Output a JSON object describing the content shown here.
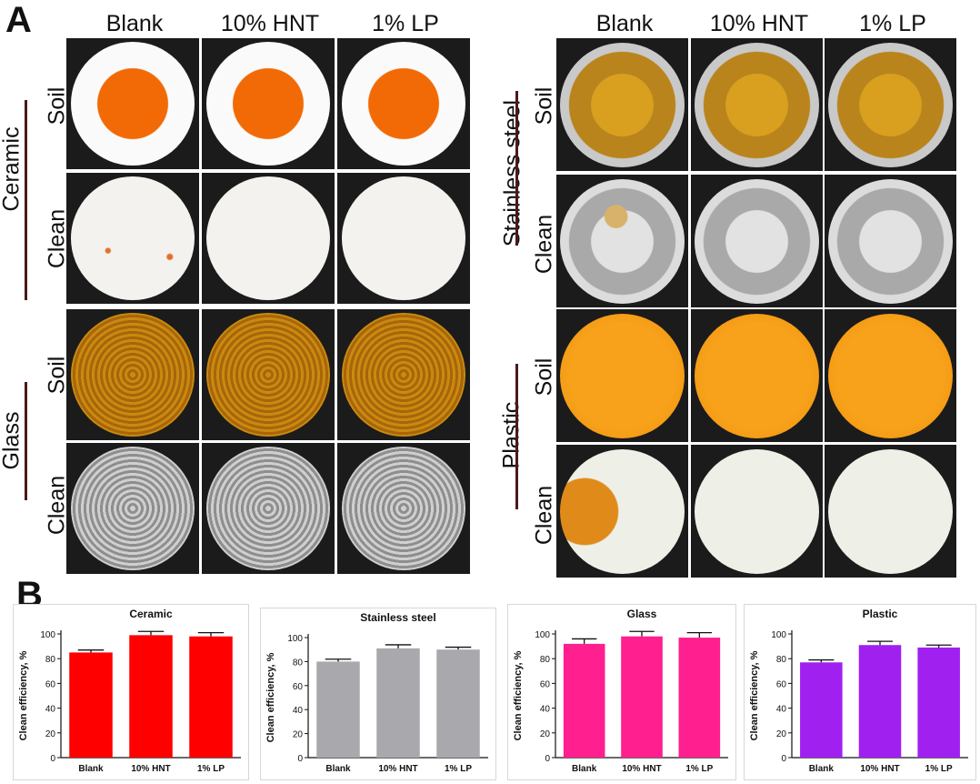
{
  "panel_a": {
    "letter": "A",
    "left_group": {
      "columns": [
        "Blank",
        "10% HNT",
        "1% LP"
      ],
      "materials": [
        {
          "name": "Ceramic",
          "rows": [
            "Soil",
            "Clean"
          ]
        },
        {
          "name": "Glass",
          "rows": [
            "Soil",
            "Clean"
          ]
        }
      ]
    },
    "right_group": {
      "columns": [
        "Blank",
        "10% HNT",
        "1% LP"
      ],
      "materials": [
        {
          "name": "Stainless steel",
          "rows": [
            "Soil",
            "Clean"
          ]
        },
        {
          "name": "Plastic",
          "rows": [
            "Soil",
            "Clean"
          ]
        }
      ]
    }
  },
  "panel_b": {
    "letter": "B"
  },
  "chart_data": [
    {
      "type": "bar",
      "title": "Ceramic",
      "categories": [
        "Blank",
        "10% HNT",
        "1% LP"
      ],
      "values": [
        85,
        99,
        98
      ],
      "errors": [
        2,
        3,
        3
      ],
      "ylabel": "Clean efficiency, %",
      "ylim": [
        0,
        100
      ],
      "yticks": [
        0,
        20,
        40,
        60,
        80,
        100
      ],
      "color": "#ff0000"
    },
    {
      "type": "bar",
      "title": "Stainless steel",
      "categories": [
        "Blank",
        "10% HNT",
        "1% LP"
      ],
      "values": [
        80,
        91,
        90
      ],
      "errors": [
        2,
        3,
        2
      ],
      "ylabel": "Clean efficiency, %",
      "ylim": [
        0,
        100
      ],
      "yticks": [
        0,
        20,
        40,
        60,
        80,
        100
      ],
      "color": "#a9a9ad"
    },
    {
      "type": "bar",
      "title": "Glass",
      "categories": [
        "Blank",
        "10% HNT",
        "1% LP"
      ],
      "values": [
        92,
        98,
        97
      ],
      "errors": [
        4,
        4,
        4
      ],
      "ylabel": "Clean efficiency, %",
      "ylim": [
        0,
        100
      ],
      "yticks": [
        0,
        20,
        40,
        60,
        80,
        100
      ],
      "color": "#ff1f8e"
    },
    {
      "type": "bar",
      "title": "Plastic",
      "categories": [
        "Blank",
        "10% HNT",
        "1% LP"
      ],
      "values": [
        77,
        91,
        89
      ],
      "errors": [
        2,
        3,
        2
      ],
      "ylabel": "Clean efficiency, %",
      "ylim": [
        0,
        100
      ],
      "yticks": [
        0,
        20,
        40,
        60,
        80,
        100
      ],
      "color": "#a020f0"
    }
  ]
}
